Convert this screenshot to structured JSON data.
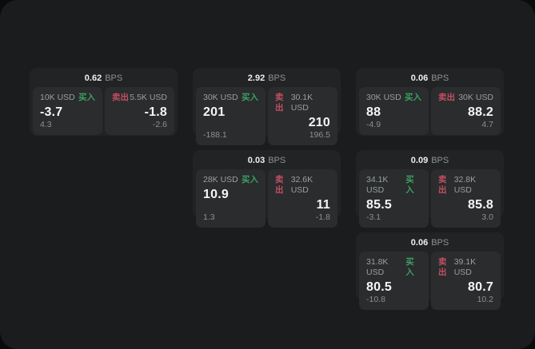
{
  "page": {
    "bps_unit": "BPS",
    "buy_label": "买入",
    "sell_label": "卖出"
  },
  "colors": {
    "backdrop": "#0a0b0b",
    "surface": "#1a1c1d",
    "card": "#212324",
    "panel": "#2a2c2d",
    "buy_green": "#3e9e63",
    "sell_red": "#c14f62",
    "text_primary": "#f4f6f7",
    "text_muted": "#9b9fa0"
  },
  "cards": [
    {
      "bps": "0.62",
      "buy": {
        "amount": "10K USD",
        "value": "-3.7",
        "sub": "4.3"
      },
      "sell": {
        "amount": "5.5K USD",
        "value": "-1.8",
        "sub": "-2.6"
      }
    },
    {
      "bps": "2.92",
      "buy": {
        "amount": "30K USD",
        "value": "201",
        "sub": "-188.1"
      },
      "sell": {
        "amount": "30.1K USD",
        "value": "210",
        "sub": "196.5"
      }
    },
    {
      "bps": "0.06",
      "buy": {
        "amount": "30K USD",
        "value": "88",
        "sub": "-4.9"
      },
      "sell": {
        "amount": "30K USD",
        "value": "88.2",
        "sub": "4.7"
      }
    },
    {
      "bps": "0.03",
      "buy": {
        "amount": "28K USD",
        "value": "10.9",
        "sub": "1.3"
      },
      "sell": {
        "amount": "32.6K USD",
        "value": "11",
        "sub": "-1.8"
      }
    },
    {
      "bps": "0.09",
      "buy": {
        "amount": "34.1K USD",
        "value": "85.5",
        "sub": "-3.1"
      },
      "sell": {
        "amount": "32.8K USD",
        "value": "85.8",
        "sub": "3.0"
      }
    },
    {
      "bps": "0.06",
      "buy": {
        "amount": "31.8K USD",
        "value": "80.5",
        "sub": "-10.8"
      },
      "sell": {
        "amount": "39.1K USD",
        "value": "80.7",
        "sub": "10.2"
      }
    }
  ]
}
